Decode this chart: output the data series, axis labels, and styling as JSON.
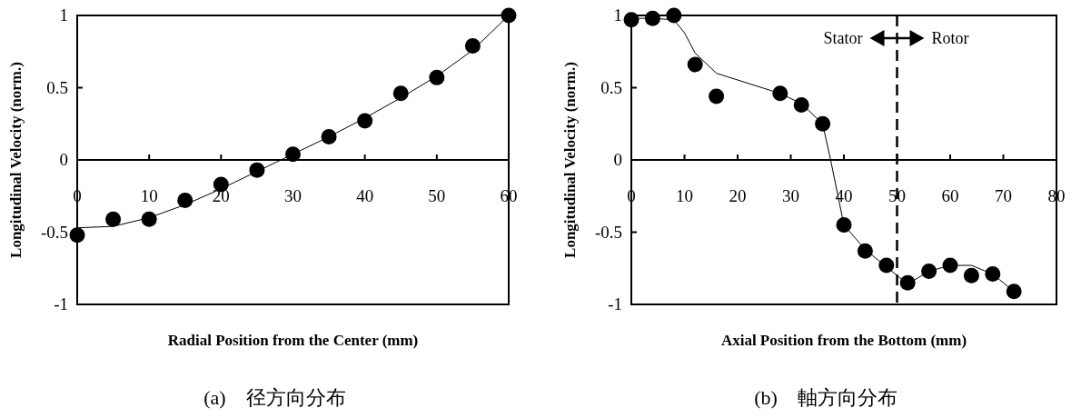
{
  "chart_data": [
    {
      "type": "scatter",
      "xlabel": "Radial Position from the Center (mm)",
      "ylabel": "Longitudinal Velocity (norm.)",
      "xlim": [
        0,
        60
      ],
      "xticks": [
        0,
        10,
        20,
        30,
        40,
        50,
        60
      ],
      "ylim": [
        -1,
        1
      ],
      "yticks": [
        -1,
        -0.5,
        0,
        0.5,
        1
      ],
      "grid": false,
      "marker": "circle",
      "series": [
        {
          "type": "scatter",
          "color": "#000000",
          "x": [
            0,
            5,
            10,
            15,
            20,
            25,
            30,
            35,
            40,
            45,
            50,
            55,
            60
          ],
          "values": [
            -0.52,
            -0.41,
            -0.41,
            -0.28,
            -0.17,
            -0.07,
            0.04,
            0.16,
            0.27,
            0.46,
            0.57,
            0.79,
            1.0
          ]
        },
        {
          "type": "line",
          "marker": "none",
          "color": "#000000",
          "x": [
            0,
            5,
            10,
            15,
            20,
            25,
            30,
            35,
            40,
            45,
            50,
            55,
            60
          ],
          "values": [
            -0.47,
            -0.46,
            -0.4,
            -0.31,
            -0.2,
            -0.08,
            0.04,
            0.16,
            0.29,
            0.43,
            0.58,
            0.76,
            1.0
          ]
        }
      ],
      "annotations": [
        "(a)　径方向分布"
      ]
    },
    {
      "type": "scatter",
      "xlabel": "Axial Position from the Bottom (mm)",
      "ylabel": "Longitudinal Velocity (norm.)",
      "xlim": [
        0,
        80
      ],
      "xticks": [
        0,
        10,
        20,
        30,
        40,
        50,
        60,
        70,
        80
      ],
      "ylim": [
        -1,
        1
      ],
      "yticks": [
        -1,
        -0.5,
        0,
        0.5,
        1
      ],
      "grid": false,
      "marker": "circle",
      "series": [
        {
          "type": "scatter",
          "color": "#000000",
          "x": [
            0,
            4,
            8,
            12,
            16,
            28,
            32,
            36,
            40,
            44,
            48,
            52,
            56,
            60,
            64,
            68,
            72
          ],
          "values": [
            0.97,
            0.98,
            1.0,
            0.66,
            0.44,
            0.46,
            0.38,
            0.25,
            -0.45,
            -0.63,
            -0.73,
            -0.85,
            -0.77,
            -0.73,
            -0.8,
            -0.79,
            -0.91
          ]
        },
        {
          "type": "line",
          "marker": "none",
          "color": "#000000",
          "x": [
            0,
            4,
            8,
            10,
            12,
            16,
            28,
            32,
            36,
            37.5,
            40,
            44,
            48,
            52,
            56,
            60,
            64,
            68,
            72
          ],
          "values": [
            0.98,
            0.98,
            0.97,
            0.88,
            0.74,
            0.6,
            0.46,
            0.39,
            0.25,
            0.0,
            -0.45,
            -0.62,
            -0.74,
            -0.86,
            -0.77,
            -0.73,
            -0.73,
            -0.79,
            -0.91
          ]
        }
      ],
      "ref_lines": [
        {
          "axis": "x",
          "value": 50,
          "color": "#000000",
          "line_style": "dashed"
        }
      ],
      "annotations": [
        "Stator",
        "Rotor",
        "(b)　軸方向分布"
      ]
    }
  ]
}
